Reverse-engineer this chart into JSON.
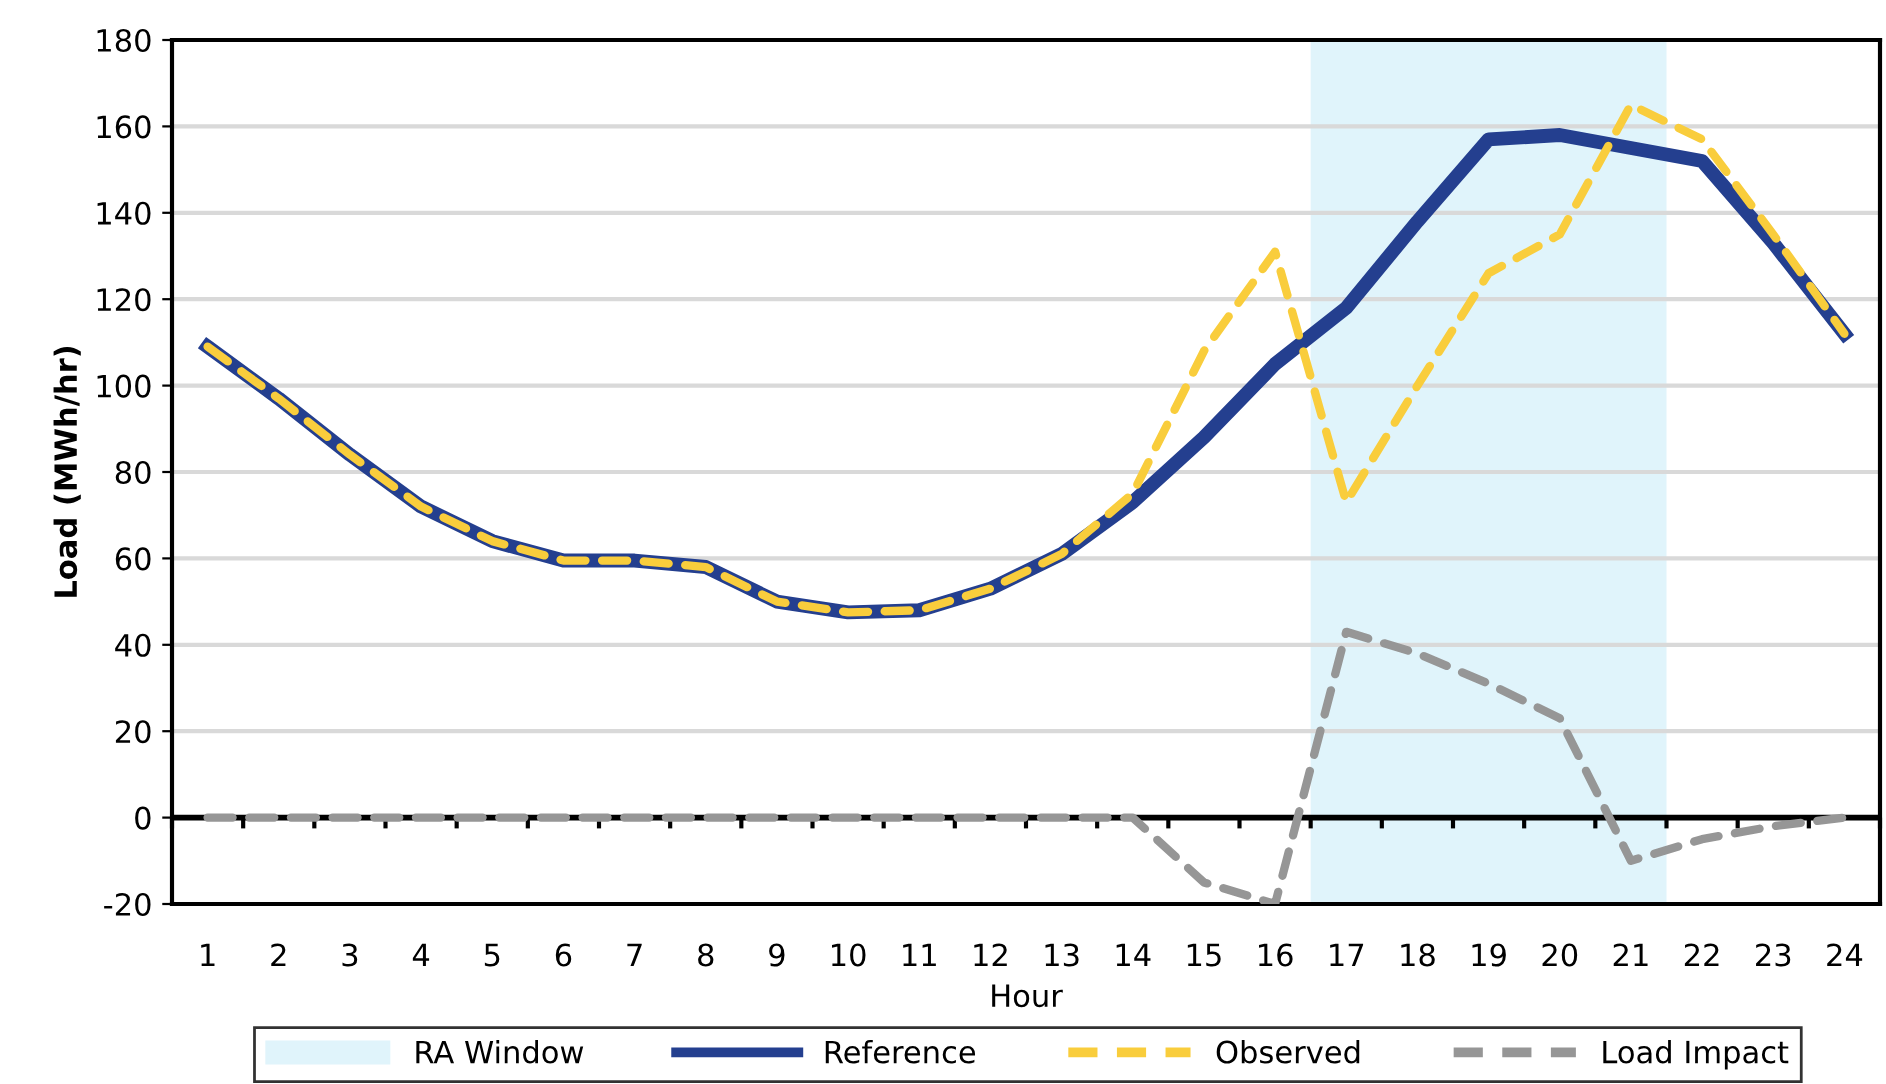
{
  "chart_data": {
    "type": "line",
    "xlabel": "Hour",
    "ylabel": "Load (MWh/hr)",
    "categories": [
      "1",
      "2",
      "3",
      "4",
      "5",
      "6",
      "7",
      "8",
      "9",
      "10",
      "11",
      "12",
      "13",
      "14",
      "15",
      "16",
      "17",
      "18",
      "19",
      "20",
      "21",
      "22",
      "23",
      "24"
    ],
    "series": [
      {
        "name": "Reference",
        "color": "#243f8f",
        "line_style": "solid",
        "values": [
          109,
          97,
          84,
          72,
          64,
          59.5,
          59.5,
          58,
          50,
          47.5,
          48,
          53,
          61,
          73,
          88,
          105,
          118,
          138,
          157,
          158,
          155,
          152,
          133,
          112
        ]
      },
      {
        "name": "Observed",
        "color": "#f9cd3c",
        "line_style": "dashed",
        "values": [
          109,
          97,
          84,
          72,
          64,
          59.5,
          59.5,
          58,
          50,
          47.5,
          48,
          53,
          61,
          75,
          108,
          131,
          73,
          100,
          126,
          135,
          165,
          157,
          135,
          112
        ]
      },
      {
        "name": "Load Impact",
        "color": "#969696",
        "line_style": "dashed",
        "values": [
          0,
          0,
          0,
          0,
          0,
          0,
          0,
          0,
          0,
          0,
          0,
          0,
          0,
          0,
          -15,
          -20,
          43,
          38,
          31,
          23,
          -10,
          -5,
          -2,
          0
        ]
      }
    ],
    "bands": [
      {
        "axis": "x",
        "from": "17",
        "to": "21",
        "label": "RA Window",
        "color": "#e0f4fb"
      }
    ],
    "ylim": [
      -20,
      180
    ],
    "yticks": [
      -20,
      0,
      20,
      40,
      60,
      80,
      100,
      120,
      140,
      160,
      180
    ],
    "grid": "y",
    "legend": "bottom",
    "marker": "none"
  }
}
